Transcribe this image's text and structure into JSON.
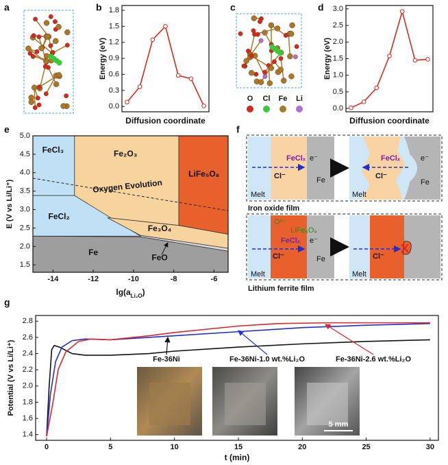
{
  "panel_labels": [
    "a",
    "b",
    "c",
    "d",
    "e",
    "f",
    "g"
  ],
  "structure_legend": [
    {
      "name": "O",
      "color": "#d42a1e"
    },
    {
      "name": "Cl",
      "color": "#3cc83c"
    },
    {
      "name": "Fe",
      "color": "#a8782a"
    },
    {
      "name": "Li",
      "color": "#b070d0"
    }
  ],
  "chart_data": [
    {
      "type": "line",
      "x_label": "Diffusion coordinate",
      "y_label": "Energy (eV)",
      "x": [
        0,
        1,
        2,
        3,
        4,
        5,
        6
      ],
      "values": [
        0.08,
        0.37,
        1.25,
        1.5,
        0.58,
        0.52,
        0.01
      ],
      "color": "#d42a1e",
      "markers": true,
      "xlim": [
        -0.4,
        6.4
      ],
      "ylim": [
        -0.1,
        1.89
      ],
      "yticks": [
        {
          "value": 0,
          "label": "0.0"
        },
        0.3,
        0.6,
        0.9,
        1.2,
        1.5,
        1.8
      ]
    },
    {
      "type": "line",
      "x_label": "Diffusion coordinate",
      "y_label": "Energy (eV)",
      "x": [
        0,
        1,
        2,
        3,
        4,
        5,
        6
      ],
      "values": [
        0.02,
        0.2,
        0.62,
        1.58,
        2.92,
        1.45,
        1.48
      ],
      "color": "#d42a1e",
      "markers": true,
      "xlim": [
        -0.4,
        6.4
      ],
      "ylim": [
        -0.1,
        3.1
      ],
      "yticks": [
        {
          "value": 0,
          "label": "0.0"
        },
        0.5,
        {
          "value": 1,
          "label": "1.0"
        },
        1.5,
        {
          "value": 2,
          "label": "2.0"
        },
        2.5,
        {
          "value": 3,
          "label": "3.0"
        }
      ]
    },
    {
      "type": "region",
      "x_label": {
        "main": "lg(a",
        "sub": "Li₂O",
        "end": ")"
      },
      "y_label": "E (V vs Li/Li⁺)",
      "xlim": [
        -15,
        -5.3
      ],
      "ylim": [
        1.3,
        5.0
      ],
      "xticks": [
        -14,
        -12,
        -10,
        -8,
        -6
      ],
      "yticks": [
        1.5,
        {
          "value": 2,
          "label": "2.0"
        },
        2.5,
        {
          "value": 3,
          "label": "3.0"
        },
        3.5,
        {
          "value": 4,
          "label": "4.0"
        },
        4.5,
        {
          "value": 5,
          "label": "5.0"
        }
      ],
      "regions": [
        {
          "label": "FeCl₃",
          "color": "#bfe0f5",
          "points": [
            [
              -15,
              5
            ],
            [
              -12.93,
              5
            ],
            [
              -12.93,
              3.38
            ],
            [
              -15,
              3.38
            ]
          ]
        },
        {
          "label": "Fe₂O₃",
          "color": "#f7d49e",
          "points": [
            [
              -12.93,
              5
            ],
            [
              -7.75,
              5
            ],
            [
              -7.75,
              2.57
            ],
            [
              -11.3,
              2.78
            ],
            [
              -12.93,
              3.38
            ]
          ]
        },
        {
          "label": "LiFe₅O₈",
          "color": "#e8612c",
          "points": [
            [
              -7.75,
              5
            ],
            [
              -5.3,
              5
            ],
            [
              -5.3,
              2.33
            ],
            [
              -7.75,
              2.57
            ]
          ]
        },
        {
          "label": "FeCl₂",
          "color": "#bfe0f5",
          "points": [
            [
              -15,
              3.38
            ],
            [
              -12.93,
              3.38
            ],
            [
              -9.65,
              2.28
            ],
            [
              -15,
              2.28
            ]
          ]
        },
        {
          "label": "Fe₃O₄",
          "color": "#f7d49e",
          "points": [
            [
              -11.3,
              2.78
            ],
            [
              -7.75,
              2.57
            ],
            [
              -5.3,
              2.33
            ],
            [
              -5.3,
              1.95
            ],
            [
              -9.65,
              2.3
            ]
          ]
        },
        {
          "label": "FeO",
          "color": "#d6d6d6",
          "points": [
            [
              -9.65,
              2.3
            ],
            [
              -5.3,
              1.95
            ],
            [
              -5.3,
              1.87
            ],
            [
              -9.65,
              2.26
            ]
          ]
        },
        {
          "label": "Fe",
          "color": "#9e9e9e",
          "points": [
            [
              -15,
              2.28
            ],
            [
              -9.65,
              2.26
            ],
            [
              -5.3,
              1.87
            ],
            [
              -5.3,
              1.3
            ],
            [
              -15,
              1.3
            ]
          ]
        }
      ],
      "oxygen_line": {
        "label": "Oxygen Evolution",
        "points": [
          [
            -15,
            3.85
          ],
          [
            -5.3,
            2.97
          ]
        ]
      }
    },
    {
      "type": "line",
      "x_label": "t (min)",
      "y_label": "Potential (V vs Li/Li⁺)",
      "xlim": [
        -0.86,
        30.65
      ],
      "ylim": [
        1.33,
        2.87
      ],
      "xticks": [
        0,
        5,
        10,
        15,
        20,
        25,
        30
      ],
      "yticks": [
        1.4,
        1.6,
        1.8,
        {
          "value": 2,
          "label": "2.0"
        },
        2.2,
        2.4,
        2.6,
        2.8
      ],
      "scale_bar": "5 mm",
      "series": [
        {
          "name": "Fe-36Ni",
          "color": "#111111",
          "x": [
            0,
            0.2,
            0.4,
            0.6,
            1.0,
            1.5,
            2,
            3,
            5,
            8,
            10,
            15,
            20,
            25,
            30
          ],
          "values": [
            1.38,
            2.0,
            2.45,
            2.5,
            2.48,
            2.44,
            2.4,
            2.38,
            2.38,
            2.4,
            2.43,
            2.48,
            2.52,
            2.55,
            2.57
          ]
        },
        {
          "name": "Fe-36Ni-1.0 wt.%Li₂O",
          "color": "#1f2fd0",
          "x": [
            0,
            0.3,
            0.7,
            1.2,
            2,
            3,
            5,
            8,
            10,
            15,
            20,
            25,
            30
          ],
          "values": [
            1.38,
            1.9,
            2.3,
            2.48,
            2.56,
            2.58,
            2.57,
            2.6,
            2.62,
            2.67,
            2.72,
            2.75,
            2.77
          ]
        },
        {
          "name": "Fe-36Ni-2.6 wt.%Li₂O",
          "color": "#e0242a",
          "x": [
            0,
            0.5,
            0.9,
            1.5,
            2.5,
            3.5,
            5,
            8,
            10,
            15,
            18,
            22,
            30
          ],
          "values": [
            1.38,
            1.8,
            2.2,
            2.42,
            2.55,
            2.58,
            2.57,
            2.62,
            2.66,
            2.74,
            2.77,
            2.78,
            2.78
          ]
        }
      ]
    }
  ],
  "diagram": {
    "iron_oxide": {
      "left": {
        "species": "FeClₓ",
        "electron": "e⁻",
        "ion": "Cl⁻",
        "metal": "Fe",
        "melt": "Melt"
      },
      "right": {
        "species": "FeClₓ",
        "electron": "e⁻",
        "ion": "Cl⁻",
        "metal": "Fe",
        "melt": "Melt"
      },
      "caption": "Iron oxide film"
    },
    "lithium_ferrite": {
      "left": {
        "oxide_ion": "O²⁻",
        "film": "LiFe₅O₈",
        "species": "FeClₓ",
        "electron": "e⁻",
        "ion": "Cl⁻",
        "metal": "Fe",
        "melt": "Melt"
      },
      "right": {
        "ion": "Cl⁻",
        "melt": "Melt"
      },
      "caption": "Lithium ferrite film"
    }
  }
}
